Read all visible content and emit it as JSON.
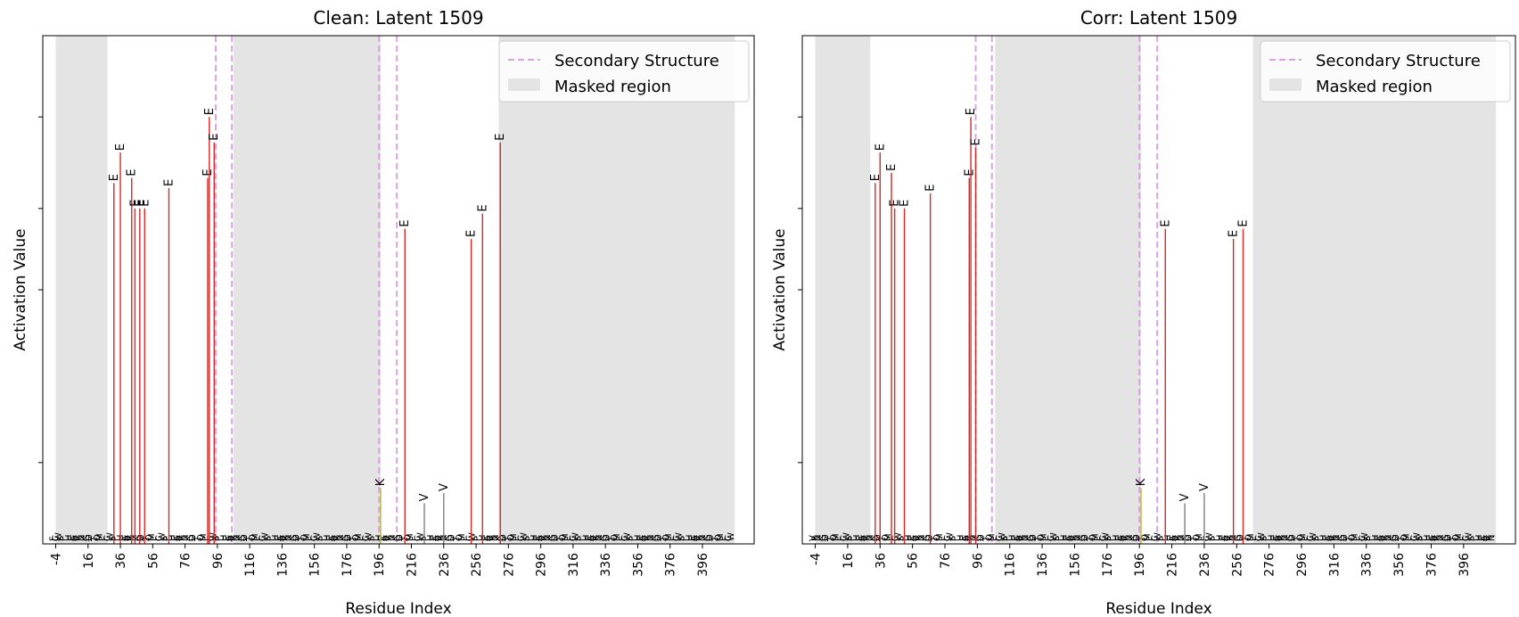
{
  "chart_data": [
    {
      "type": "bar",
      "title": "Clean: Latent 1509",
      "xlabel": "Residue Index",
      "ylabel": "Activation Value",
      "xlim": [
        -12,
        428
      ],
      "ylim": [
        0,
        1.0
      ],
      "x_ticks": [
        -4,
        16,
        36,
        56,
        76,
        96,
        116,
        136,
        156,
        176,
        196,
        216,
        236,
        256,
        276,
        296,
        316,
        336,
        356,
        376,
        396
      ],
      "masked_regions": [
        [
          -4,
          28
        ],
        [
          106,
          197
        ],
        [
          270,
          416
        ]
      ],
      "secondary_structure_lines": [
        95,
        105,
        196,
        207
      ],
      "legend": {
        "placement": "top-right",
        "entries": [
          "Secondary Structure",
          "Masked region"
        ]
      },
      "bars": [
        {
          "x": 32,
          "value": 0.71,
          "label": "E",
          "color": "#d62728"
        },
        {
          "x": 36,
          "value": 0.77,
          "label": "E",
          "color": "#d62728"
        },
        {
          "x": 43,
          "value": 0.72,
          "label": "E",
          "color": "#d62728"
        },
        {
          "x": 45,
          "value": 0.66,
          "label": "E",
          "color": "#d62728"
        },
        {
          "x": 48,
          "value": 0.66,
          "label": "E",
          "color": "#d62728"
        },
        {
          "x": 51,
          "value": 0.66,
          "label": "E",
          "color": "#d62728"
        },
        {
          "x": 66,
          "value": 0.7,
          "label": "E",
          "color": "#d62728"
        },
        {
          "x": 90,
          "value": 0.72,
          "label": "E",
          "color": "#d62728"
        },
        {
          "x": 91,
          "value": 0.84,
          "label": "E",
          "color": "#d62728"
        },
        {
          "x": 94,
          "value": 0.79,
          "label": "E",
          "color": "#d62728"
        },
        {
          "x": 197,
          "value": 0.11,
          "label": "K",
          "color": "#bcbd22"
        },
        {
          "x": 212,
          "value": 0.62,
          "label": "E",
          "color": "#d62728"
        },
        {
          "x": 224,
          "value": 0.08,
          "label": "V",
          "color": "#7f7f7f"
        },
        {
          "x": 236,
          "value": 0.1,
          "label": "V",
          "color": "#7f7f7f"
        },
        {
          "x": 253,
          "value": 0.6,
          "label": "E",
          "color": "#d62728"
        },
        {
          "x": 260,
          "value": 0.65,
          "label": "E",
          "color": "#d62728"
        },
        {
          "x": 271,
          "value": 0.79,
          "label": "E",
          "color": "#d62728"
        }
      ]
    },
    {
      "type": "bar",
      "title": "Corr: Latent 1509",
      "xlabel": "Residue Index",
      "ylabel": "Activation Value",
      "xlim": [
        -12,
        428
      ],
      "ylim": [
        0,
        1.0
      ],
      "x_ticks": [
        -4,
        16,
        36,
        56,
        76,
        96,
        116,
        136,
        156,
        176,
        196,
        216,
        236,
        256,
        276,
        296,
        316,
        336,
        356,
        376,
        396
      ],
      "masked_regions": [
        [
          -4,
          30
        ],
        [
          107,
          197
        ],
        [
          266,
          416
        ]
      ],
      "secondary_structure_lines": [
        95,
        105,
        196,
        207
      ],
      "legend": {
        "placement": "top-right",
        "entries": [
          "Secondary Structure",
          "Masked region"
        ]
      },
      "bars": [
        {
          "x": 33,
          "value": 0.71,
          "label": "E",
          "color": "#d62728"
        },
        {
          "x": 36,
          "value": 0.77,
          "label": "E",
          "color": "#d62728"
        },
        {
          "x": 43,
          "value": 0.73,
          "label": "E",
          "color": "#d62728"
        },
        {
          "x": 45,
          "value": 0.66,
          "label": "E",
          "color": "#d62728"
        },
        {
          "x": 51,
          "value": 0.66,
          "label": "E",
          "color": "#d62728"
        },
        {
          "x": 67,
          "value": 0.69,
          "label": "E",
          "color": "#d62728"
        },
        {
          "x": 91,
          "value": 0.72,
          "label": "E",
          "color": "#d62728"
        },
        {
          "x": 92,
          "value": 0.84,
          "label": "E",
          "color": "#d62728"
        },
        {
          "x": 95,
          "value": 0.78,
          "label": "E",
          "color": "#d62728"
        },
        {
          "x": 197,
          "value": 0.11,
          "label": "K",
          "color": "#bcbd22"
        },
        {
          "x": 212,
          "value": 0.62,
          "label": "E",
          "color": "#d62728"
        },
        {
          "x": 224,
          "value": 0.08,
          "label": "V",
          "color": "#7f7f7f"
        },
        {
          "x": 236,
          "value": 0.1,
          "label": "V",
          "color": "#7f7f7f"
        },
        {
          "x": 254,
          "value": 0.6,
          "label": "E",
          "color": "#d62728"
        },
        {
          "x": 260,
          "value": 0.62,
          "label": "E",
          "color": "#d62728"
        }
      ]
    }
  ],
  "colors": {
    "mask_fill": "#e4e4e4",
    "secondary_structure": "#d9a3e3",
    "axis": "#000000",
    "baseline_letters": "#333333"
  }
}
